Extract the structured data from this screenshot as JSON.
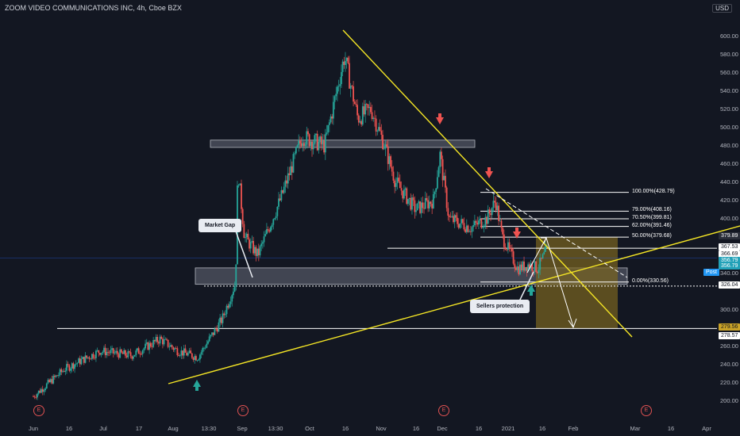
{
  "header": {
    "title": "ZOOM VIDEO COMMUNICATIONS INC, 4h, Cboe BZX",
    "unit": "USD"
  },
  "colors": {
    "background": "#131722",
    "up": "#26a69a",
    "down": "#ef5350",
    "trendline": "#f5e625",
    "zone": "#555a66",
    "target_box": "#6b5c1e"
  },
  "price_axis": {
    "ticks": [
      "600.00",
      "580.00",
      "560.00",
      "540.00",
      "520.00",
      "500.00",
      "480.00",
      "460.00",
      "440.00",
      "420.00",
      "400.00",
      "380.00",
      "340.00",
      "300.00",
      "280.00",
      "260.00",
      "240.00",
      "220.00",
      "200.00"
    ],
    "tags": [
      {
        "text": "379.89",
        "kind": "dark"
      },
      {
        "text": "367.53",
        "kind": "white"
      },
      {
        "text": "366.69",
        "kind": "white"
      },
      {
        "text": "356.79",
        "kind": "teal"
      },
      {
        "text": "356.79",
        "kind": "teal"
      },
      {
        "text": "326.04",
        "kind": "white"
      },
      {
        "text": "279.56",
        "kind": "gold"
      },
      {
        "text": "278.57",
        "kind": "white"
      }
    ],
    "post_label": "Post"
  },
  "time_axis": {
    "ticks": [
      "Jun",
      "16",
      "Jul",
      "17",
      "Aug",
      "13:30",
      "Sep",
      "13:30",
      "Oct",
      "16",
      "Nov",
      "16",
      "Dec",
      "16",
      "2021",
      "16",
      "Feb",
      "Mar",
      "16",
      "Apr"
    ]
  },
  "fibonacci": [
    {
      "label": "100.00%(428.79)",
      "price": 428.79
    },
    {
      "label": "79.00%(408.16)",
      "price": 408.16
    },
    {
      "label": "70.50%(399.81)",
      "price": 399.81
    },
    {
      "label": "62.00%(391.46)",
      "price": 391.46
    },
    {
      "label": "50.00%(379.68)",
      "price": 379.68
    },
    {
      "label": "0.00%(330.56)",
      "price": 330.56
    }
  ],
  "annotations": {
    "market_gap": "Market Gap",
    "sellers_protection": "Sellers protection",
    "event_markers": [
      "E",
      "E",
      "E",
      "E"
    ]
  },
  "chart_data": {
    "type": "candlestick",
    "title": "ZOOM VIDEO COMMUNICATIONS INC, 4h, Cboe BZX",
    "y_range": [
      195,
      615
    ],
    "x_range": [
      "2020-05-29",
      "2021-04-01"
    ],
    "grid": false,
    "anchors": [
      {
        "date": "2020-06-01",
        "price": 205
      },
      {
        "date": "2020-06-15",
        "price": 235
      },
      {
        "date": "2020-07-01",
        "price": 255
      },
      {
        "date": "2020-07-15",
        "price": 250
      },
      {
        "date": "2020-07-28",
        "price": 268
      },
      {
        "date": "2020-08-05",
        "price": 255
      },
      {
        "date": "2020-08-14",
        "price": 248
      },
      {
        "date": "2020-08-25",
        "price": 290
      },
      {
        "date": "2020-08-31",
        "price": 330
      },
      {
        "date": "2020-09-01",
        "price": 455
      },
      {
        "date": "2020-09-04",
        "price": 380
      },
      {
        "date": "2020-09-10",
        "price": 360
      },
      {
        "date": "2020-09-20",
        "price": 420
      },
      {
        "date": "2020-09-30",
        "price": 490
      },
      {
        "date": "2020-10-10",
        "price": 480
      },
      {
        "date": "2020-10-19",
        "price": 578
      },
      {
        "date": "2020-10-25",
        "price": 510
      },
      {
        "date": "2020-10-31",
        "price": 520
      },
      {
        "date": "2020-11-06",
        "price": 480
      },
      {
        "date": "2020-11-11",
        "price": 440
      },
      {
        "date": "2020-11-20",
        "price": 410
      },
      {
        "date": "2020-11-28",
        "price": 420
      },
      {
        "date": "2020-12-01",
        "price": 470
      },
      {
        "date": "2020-12-05",
        "price": 400
      },
      {
        "date": "2020-12-15",
        "price": 390
      },
      {
        "date": "2020-12-22",
        "price": 400
      },
      {
        "date": "2020-12-26",
        "price": 420
      },
      {
        "date": "2020-12-29",
        "price": 380
      },
      {
        "date": "2021-01-05",
        "price": 345
      },
      {
        "date": "2021-01-10",
        "price": 350
      },
      {
        "date": "2021-01-14",
        "price": 345
      },
      {
        "date": "2021-01-18",
        "price": 366
      }
    ],
    "horizontal_levels": [
      {
        "price": 367.53
      },
      {
        "price": 326.04
      },
      {
        "price": 279.56
      }
    ],
    "zones": [
      {
        "name": "upper resistance zone",
        "top": 486,
        "bottom": 478
      },
      {
        "name": "market gap zone",
        "top": 346,
        "bottom": 328
      }
    ],
    "target_box": {
      "top": 379.89,
      "bottom": 279.56
    }
  }
}
